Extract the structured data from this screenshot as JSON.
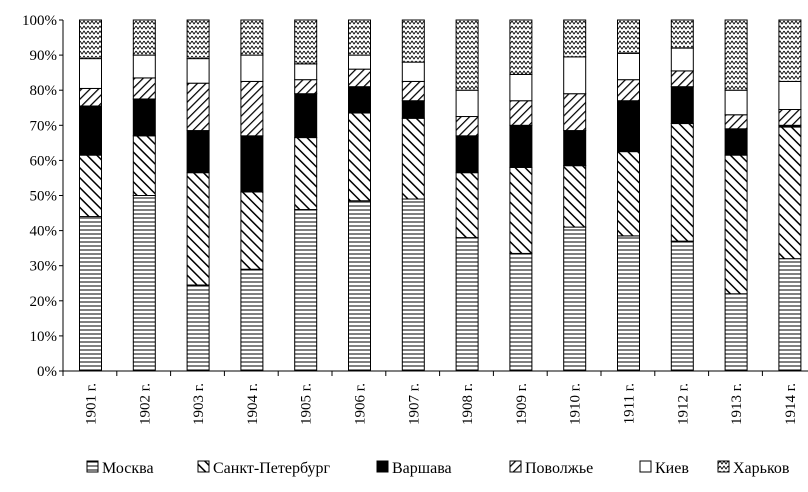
{
  "chart_data": {
    "type": "bar",
    "stacked": true,
    "normalized": true,
    "title": "",
    "xlabel": "",
    "ylabel": "",
    "ylim": [
      0,
      100
    ],
    "yticks": [
      "0%",
      "10%",
      "20%",
      "30%",
      "40%",
      "50%",
      "60%",
      "70%",
      "80%",
      "90%",
      "100%"
    ],
    "grid": false,
    "legend_position": "bottom",
    "categories": [
      "1901 г.",
      "1902 г.",
      "1903 г.",
      "1904 г.",
      "1905 г.",
      "1906 г.",
      "1907 г.",
      "1908 г.",
      "1909 г.",
      "1910 г.",
      "1911 г.",
      "1912 г.",
      "1913 г.",
      "1914 г."
    ],
    "series": [
      {
        "name": "Москва",
        "pattern": "horizontal-lines",
        "values": [
          44,
          50,
          24.5,
          29,
          46,
          48.5,
          49,
          38,
          33.5,
          41,
          38.5,
          37,
          22,
          32
        ]
      },
      {
        "name": "Санкт-Петербург",
        "pattern": "diagonal-lines",
        "values": [
          17.5,
          17,
          32,
          22,
          20.5,
          25,
          23,
          18.5,
          24.5,
          17.5,
          24,
          33.5,
          39.5,
          37.5
        ]
      },
      {
        "name": "Варшава",
        "pattern": "solid-black",
        "values": [
          14,
          10.5,
          12,
          16,
          12.5,
          7.5,
          5,
          10.5,
          12,
          10,
          14.5,
          10.5,
          7.5,
          0.5
        ]
      },
      {
        "name": "Поволжье",
        "pattern": "back-diagonal-lines",
        "values": [
          5,
          6,
          13.5,
          15.5,
          4,
          5,
          5.5,
          5.5,
          7,
          10.5,
          6,
          4.5,
          4,
          4.5
        ]
      },
      {
        "name": "Киев",
        "pattern": "white",
        "values": [
          8.5,
          6.5,
          7,
          7.5,
          4.5,
          4,
          5.5,
          7.5,
          7.5,
          10.5,
          7.5,
          6.5,
          7,
          8
        ]
      },
      {
        "name": "Харьков",
        "pattern": "zigzag",
        "values": [
          11,
          10,
          11,
          10,
          12.5,
          10,
          12,
          20,
          15.5,
          10.5,
          9.5,
          8,
          20,
          17.5
        ]
      }
    ]
  },
  "style": {
    "bar_fill": "#ffffff",
    "stroke": "#000000",
    "solid_fill": "#000000"
  }
}
